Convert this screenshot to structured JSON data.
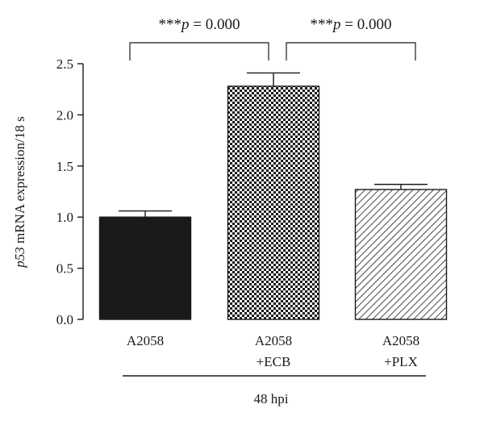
{
  "chart_data": {
    "type": "bar",
    "categories": [
      [
        "A2058"
      ],
      [
        "A2058",
        "+ECB"
      ],
      [
        "A2058",
        "+PLX"
      ]
    ],
    "values": [
      1.0,
      2.28,
      1.27
    ],
    "errors": [
      0.06,
      0.13,
      0.05
    ],
    "patterns": [
      "solid",
      "checker",
      "diagonal"
    ],
    "ylim": [
      0,
      2.5
    ],
    "yticks": [
      "0.0",
      "0.5",
      "1.0",
      "1.5",
      "2.0",
      "2.5"
    ],
    "ylabel_italic": "p53",
    "ylabel_rest": " mRNA expression/18 s",
    "group_label": "48 hpi",
    "comparisons": [
      {
        "from": 0,
        "to": 1,
        "stars": "***",
        "p_italic": "p",
        "p_rest": " = 0.000"
      },
      {
        "from": 1,
        "to": 2,
        "stars": "***",
        "p_italic": "p",
        "p_rest": " = 0.000"
      }
    ],
    "colors": {
      "bar_fill": "#1a1a1a",
      "axis": "#1a1a1a"
    }
  }
}
